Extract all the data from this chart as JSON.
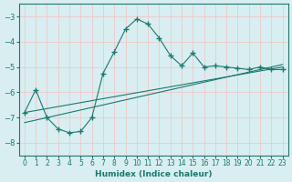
{
  "xlabel": "Humidex (Indice chaleur)",
  "bg_color": "#d8eef0",
  "grid_color": "#f0c8c8",
  "line_color": "#1a7a6e",
  "xlim": [
    -0.5,
    23.5
  ],
  "ylim": [
    -8.5,
    -2.5
  ],
  "xticks": [
    0,
    1,
    2,
    3,
    4,
    5,
    6,
    7,
    8,
    9,
    10,
    11,
    12,
    13,
    14,
    15,
    16,
    17,
    18,
    19,
    20,
    21,
    22,
    23
  ],
  "yticks": [
    -8,
    -7,
    -6,
    -5,
    -4,
    -3
  ],
  "curve1_x": [
    0,
    1,
    2,
    3,
    4,
    5,
    6,
    7,
    8,
    9,
    10,
    11,
    12,
    13,
    14,
    15,
    16,
    17,
    18,
    19,
    20,
    21,
    22,
    23
  ],
  "curve1_y": [
    -6.8,
    -5.9,
    -7.0,
    -7.45,
    -7.6,
    -7.55,
    -7.0,
    -5.25,
    -4.4,
    -3.5,
    -3.1,
    -3.3,
    -3.85,
    -4.55,
    -4.95,
    -4.45,
    -5.0,
    -4.95,
    -5.0,
    -5.05,
    -5.1,
    -5.0,
    -5.1,
    -5.1
  ],
  "curve2_x": [
    0,
    23
  ],
  "curve2_y": [
    -6.8,
    -5.0
  ],
  "curve3_x": [
    0,
    23
  ],
  "curve3_y": [
    -7.2,
    -4.9
  ]
}
